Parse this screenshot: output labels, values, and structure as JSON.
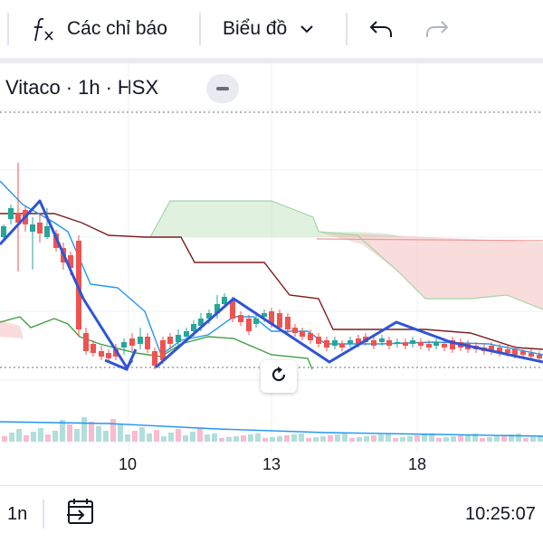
{
  "toolbar": {
    "indicators_label": "Các chỉ báo",
    "chart_type_label": "Biểu đồ",
    "undo_icon": "undo-icon",
    "redo_icon": "redo-icon",
    "fx_icon": "fx-icon"
  },
  "legend": {
    "symbol": "Vitaco",
    "interval": "1h",
    "exchange": "HSX",
    "separator": "·"
  },
  "x_axis": {
    "ticks": [
      "10",
      "13",
      "18"
    ]
  },
  "bottom_bar": {
    "range_label": "1n",
    "time": "10:25:07"
  },
  "colors": {
    "up": "#26a69a",
    "down": "#ef5350",
    "zigzag": "#2f54d6",
    "kijun": "#7b1f1f",
    "tenkan": "#2196f3",
    "chikou": "#43a047",
    "cloud_green": "#a5d6a7",
    "cloud_red": "#ef9a9a"
  }
}
